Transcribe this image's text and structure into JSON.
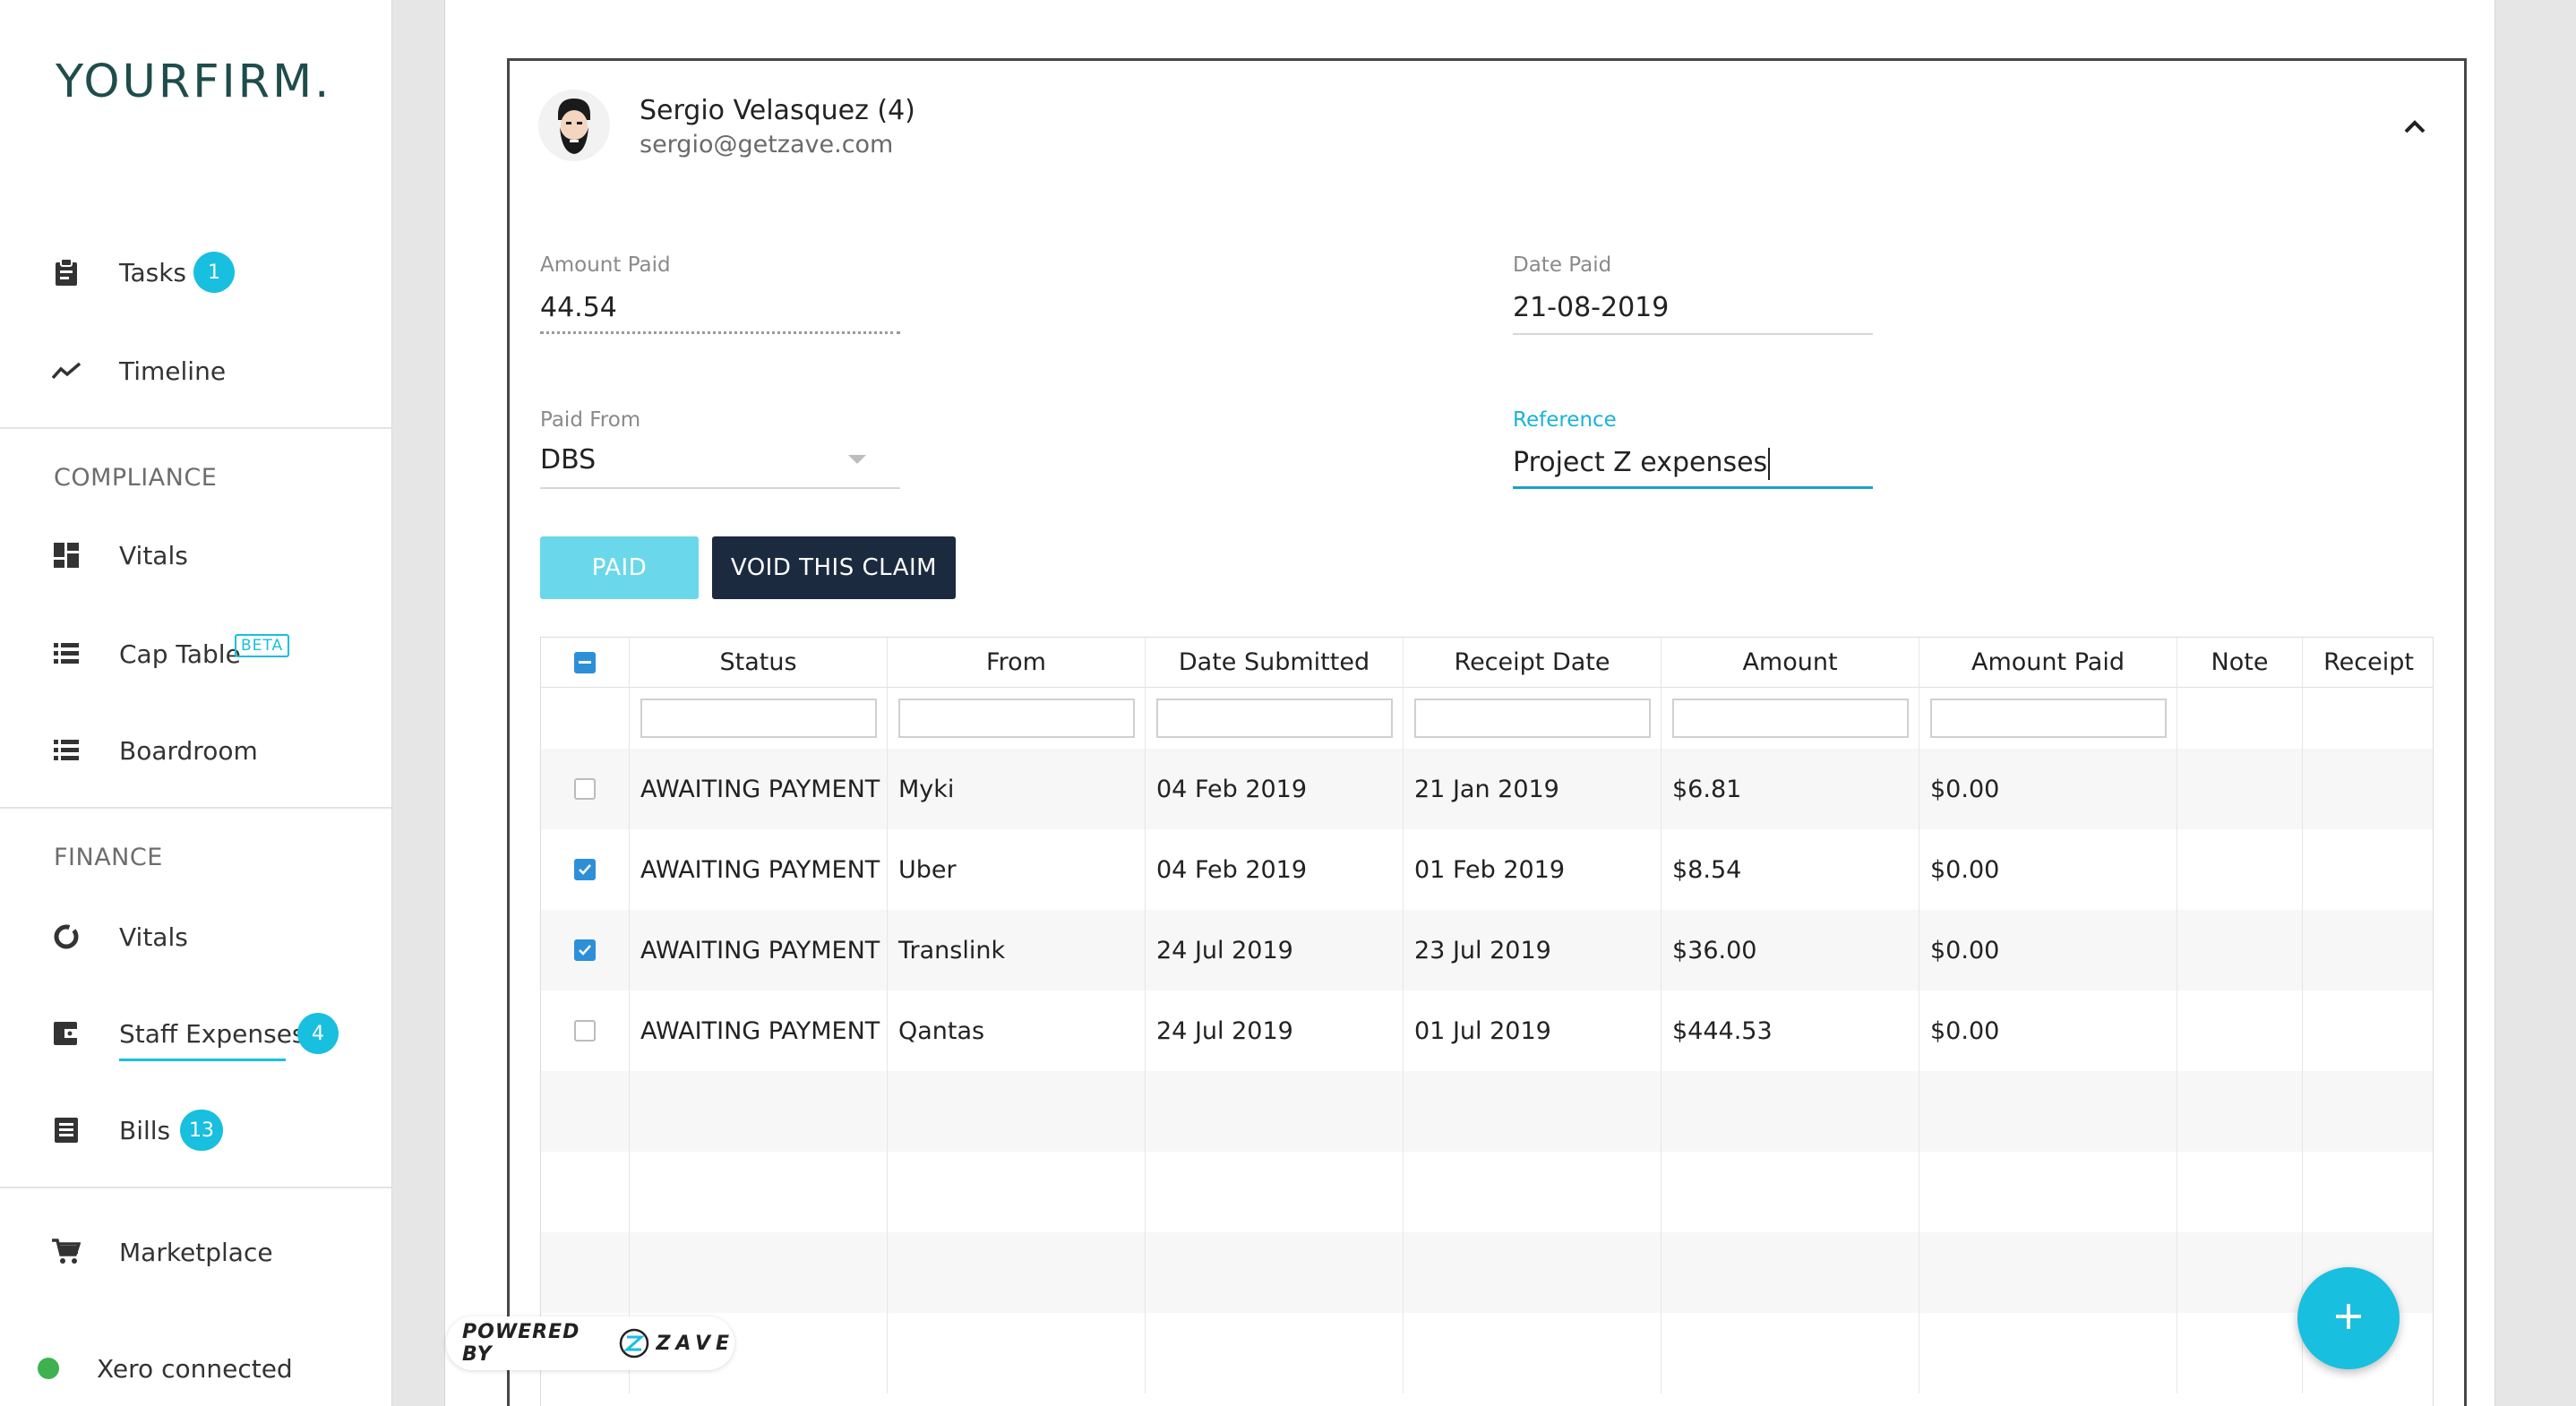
{
  "brand": {
    "logo_bold": "YOUR",
    "logo_thin": "FIRM."
  },
  "sidebar": {
    "items": [
      {
        "label": "Tasks",
        "badge": "1",
        "icon": "clipboard-icon"
      },
      {
        "label": "Timeline",
        "icon": "trend-line-icon"
      },
      {
        "section": "COMPLIANCE"
      },
      {
        "label": "Vitals",
        "icon": "dashboard-icon"
      },
      {
        "label": "Cap Table",
        "tag": "BETA",
        "icon": "list-icon"
      },
      {
        "label": "Boardroom",
        "icon": "list-icon"
      },
      {
        "section": "FINANCE"
      },
      {
        "label": "Vitals",
        "icon": "donut-icon"
      },
      {
        "label": "Staff Expenses",
        "badge": "4",
        "icon": "wallet-icon",
        "active": true
      },
      {
        "label": "Bills",
        "badge": "13",
        "icon": "receipt-icon"
      },
      {
        "label": "Marketplace",
        "icon": "cart-icon"
      },
      {
        "label": "Xero connected",
        "icon": "status-dot"
      }
    ]
  },
  "claim": {
    "user_name": "Sergio Velasquez (4)",
    "user_email": "sergio@getzave.com",
    "amount_paid_label": "Amount Paid",
    "amount_paid_value": "44.54",
    "date_paid_label": "Date Paid",
    "date_paid_value": "21-08-2019",
    "paid_from_label": "Paid From",
    "paid_from_value": "DBS",
    "reference_label": "Reference",
    "reference_value": "Project Z expenses",
    "paid_button": "PAID",
    "void_button": "VOID THIS CLAIM"
  },
  "table": {
    "columns": [
      "Status",
      "From",
      "Date Submitted",
      "Receipt Date",
      "Amount",
      "Amount Paid",
      "Note",
      "Receipt"
    ],
    "rows": [
      {
        "checked": false,
        "status": "AWAITING PAYMENT",
        "from": "Myki",
        "date_submitted": "04 Feb 2019",
        "receipt_date": "21 Jan 2019",
        "amount": "$6.81",
        "amount_paid": "$0.00",
        "note": "",
        "receipt": ""
      },
      {
        "checked": true,
        "status": "AWAITING PAYMENT",
        "from": "Uber",
        "date_submitted": "04 Feb 2019",
        "receipt_date": "01 Feb 2019",
        "amount": "$8.54",
        "amount_paid": "$0.00",
        "note": "",
        "receipt": ""
      },
      {
        "checked": true,
        "status": "AWAITING PAYMENT",
        "from": "Translink",
        "date_submitted": "24 Jul 2019",
        "receipt_date": "23 Jul 2019",
        "amount": "$36.00",
        "amount_paid": "$0.00",
        "note": "",
        "receipt": ""
      },
      {
        "checked": false,
        "status": "AWAITING PAYMENT",
        "from": "Qantas",
        "date_submitted": "24 Jul 2019",
        "receipt_date": "01 Jul 2019",
        "amount": "$444.53",
        "amount_paid": "$0.00",
        "note": "",
        "receipt": ""
      }
    ]
  },
  "footer": {
    "powered_by": "POWERED BY",
    "powered_brand": "ZAVE"
  },
  "colors": {
    "accent": "#18bfdf",
    "brand": "#1e4d4b",
    "dark_button": "#1c2a3f",
    "status_ok": "#3fb24f"
  }
}
